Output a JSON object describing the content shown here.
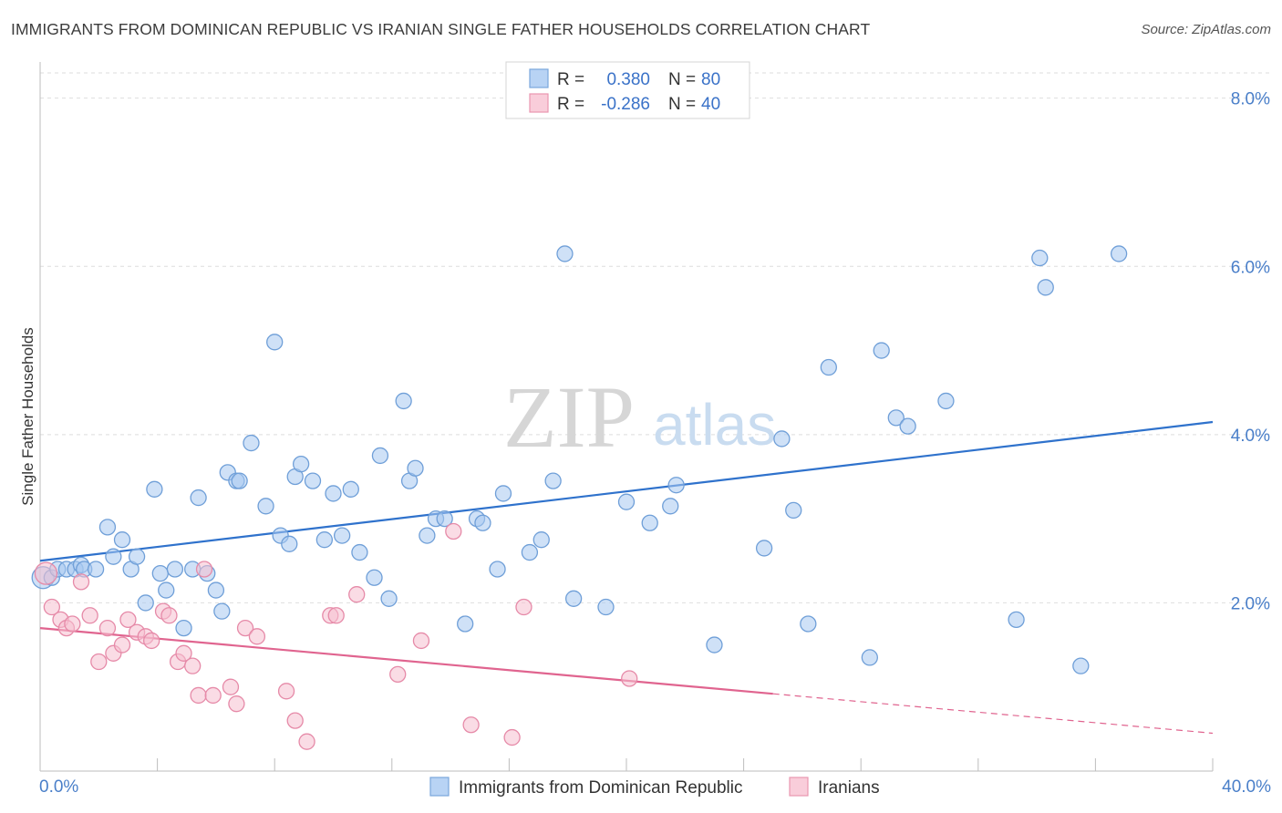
{
  "title": "IMMIGRANTS FROM DOMINICAN REPUBLIC VS IRANIAN SINGLE FATHER HOUSEHOLDS CORRELATION CHART",
  "source": "Source: ZipAtlas.com",
  "watermark": {
    "zip": "ZIP",
    "atlas": "atlas"
  },
  "colors": {
    "blue_fill": "#a8c8f0",
    "blue_stroke": "#6f9fd8",
    "blue_line": "#2f72cc",
    "pink_fill": "#f6bfd0",
    "pink_stroke": "#e68aa8",
    "pink_line": "#e0648f",
    "grid": "#dedede",
    "axis_label": "#4a7fc9"
  },
  "legend_top": {
    "rows": [
      {
        "r_label": "R =",
        "r_value": "0.380",
        "n_label": "N =",
        "n_value": "80"
      },
      {
        "r_label": "R =",
        "r_value": "-0.286",
        "n_label": "N =",
        "n_value": "40"
      }
    ]
  },
  "legend_bottom": {
    "items": [
      "Immigrants from Dominican Republic",
      "Iranians"
    ]
  },
  "chart_data": {
    "type": "scatter",
    "xlabel": "",
    "ylabel": "Single Father Households",
    "xlim": [
      0,
      40
    ],
    "ylim": [
      0,
      8.3
    ],
    "x_tick_labels": [
      "0.0%",
      "40.0%"
    ],
    "y_ticks": [
      2,
      4,
      6,
      8
    ],
    "y_tick_labels": [
      "2.0%",
      "4.0%",
      "6.0%",
      "8.0%"
    ],
    "series": [
      {
        "name": "Immigrants from Dominican Republic",
        "color": "blue",
        "trend": {
          "x": [
            0,
            40
          ],
          "y": [
            2.5,
            4.15
          ],
          "dashed_from": null
        },
        "points": [
          [
            0.1,
            2.3
          ],
          [
            0.4,
            2.3
          ],
          [
            0.6,
            2.4
          ],
          [
            0.9,
            2.4
          ],
          [
            1.2,
            2.4
          ],
          [
            1.4,
            2.45
          ],
          [
            1.5,
            2.4
          ],
          [
            1.9,
            2.4
          ],
          [
            2.3,
            2.9
          ],
          [
            2.5,
            2.55
          ],
          [
            2.8,
            2.75
          ],
          [
            3.1,
            2.4
          ],
          [
            3.3,
            2.55
          ],
          [
            3.6,
            2.0
          ],
          [
            3.9,
            3.35
          ],
          [
            4.1,
            2.35
          ],
          [
            4.3,
            2.15
          ],
          [
            4.6,
            2.4
          ],
          [
            4.9,
            1.7
          ],
          [
            5.2,
            2.4
          ],
          [
            5.4,
            3.25
          ],
          [
            5.7,
            2.35
          ],
          [
            6.0,
            2.15
          ],
          [
            6.2,
            1.9
          ],
          [
            6.4,
            3.55
          ],
          [
            6.7,
            3.45
          ],
          [
            6.8,
            3.45
          ],
          [
            7.2,
            3.9
          ],
          [
            7.7,
            3.15
          ],
          [
            8.0,
            5.1
          ],
          [
            8.2,
            2.8
          ],
          [
            8.5,
            2.7
          ],
          [
            8.7,
            3.5
          ],
          [
            8.9,
            3.65
          ],
          [
            9.3,
            3.45
          ],
          [
            9.7,
            2.75
          ],
          [
            10.0,
            3.3
          ],
          [
            10.3,
            2.8
          ],
          [
            10.6,
            3.35
          ],
          [
            10.9,
            2.6
          ],
          [
            11.4,
            2.3
          ],
          [
            11.6,
            3.75
          ],
          [
            11.9,
            2.05
          ],
          [
            12.4,
            4.4
          ],
          [
            12.6,
            3.45
          ],
          [
            12.8,
            3.6
          ],
          [
            13.2,
            2.8
          ],
          [
            13.5,
            3.0
          ],
          [
            13.8,
            3.0
          ],
          [
            14.5,
            1.75
          ],
          [
            14.9,
            3.0
          ],
          [
            15.1,
            2.95
          ],
          [
            15.6,
            2.4
          ],
          [
            15.8,
            3.3
          ],
          [
            16.7,
            2.6
          ],
          [
            17.1,
            2.75
          ],
          [
            17.5,
            3.45
          ],
          [
            17.9,
            6.15
          ],
          [
            18.2,
            2.05
          ],
          [
            19.3,
            1.95
          ],
          [
            20.0,
            3.2
          ],
          [
            20.8,
            2.95
          ],
          [
            21.5,
            3.15
          ],
          [
            21.7,
            3.4
          ],
          [
            23.0,
            1.5
          ],
          [
            24.7,
            2.65
          ],
          [
            25.3,
            3.95
          ],
          [
            25.7,
            3.1
          ],
          [
            26.2,
            1.75
          ],
          [
            26.9,
            4.8
          ],
          [
            28.3,
            1.35
          ],
          [
            28.7,
            5.0
          ],
          [
            29.2,
            4.2
          ],
          [
            29.6,
            4.1
          ],
          [
            30.9,
            4.4
          ],
          [
            33.3,
            1.8
          ],
          [
            34.1,
            6.1
          ],
          [
            34.3,
            5.75
          ],
          [
            35.5,
            1.25
          ],
          [
            36.8,
            6.15
          ]
        ]
      },
      {
        "name": "Iranians",
        "color": "pink",
        "trend": {
          "x": [
            0,
            40
          ],
          "y": [
            1.7,
            0.45
          ],
          "dashed_from": 25
        },
        "points": [
          [
            0.2,
            2.35
          ],
          [
            0.4,
            1.95
          ],
          [
            0.7,
            1.8
          ],
          [
            0.9,
            1.7
          ],
          [
            1.1,
            1.75
          ],
          [
            1.4,
            2.25
          ],
          [
            1.7,
            1.85
          ],
          [
            2.0,
            1.3
          ],
          [
            2.3,
            1.7
          ],
          [
            2.5,
            1.4
          ],
          [
            2.8,
            1.5
          ],
          [
            3.0,
            1.8
          ],
          [
            3.3,
            1.65
          ],
          [
            3.6,
            1.6
          ],
          [
            3.8,
            1.55
          ],
          [
            4.2,
            1.9
          ],
          [
            4.4,
            1.85
          ],
          [
            4.7,
            1.3
          ],
          [
            4.9,
            1.4
          ],
          [
            5.2,
            1.25
          ],
          [
            5.4,
            0.9
          ],
          [
            5.6,
            2.4
          ],
          [
            5.9,
            0.9
          ],
          [
            6.5,
            1.0
          ],
          [
            6.7,
            0.8
          ],
          [
            7.0,
            1.7
          ],
          [
            7.4,
            1.6
          ],
          [
            8.4,
            0.95
          ],
          [
            8.7,
            0.6
          ],
          [
            9.1,
            0.35
          ],
          [
            9.9,
            1.85
          ],
          [
            10.1,
            1.85
          ],
          [
            10.8,
            2.1
          ],
          [
            12.2,
            1.15
          ],
          [
            13.0,
            1.55
          ],
          [
            14.1,
            2.85
          ],
          [
            14.7,
            0.55
          ],
          [
            16.1,
            0.4
          ],
          [
            16.5,
            1.95
          ],
          [
            20.1,
            1.1
          ]
        ]
      }
    ]
  }
}
